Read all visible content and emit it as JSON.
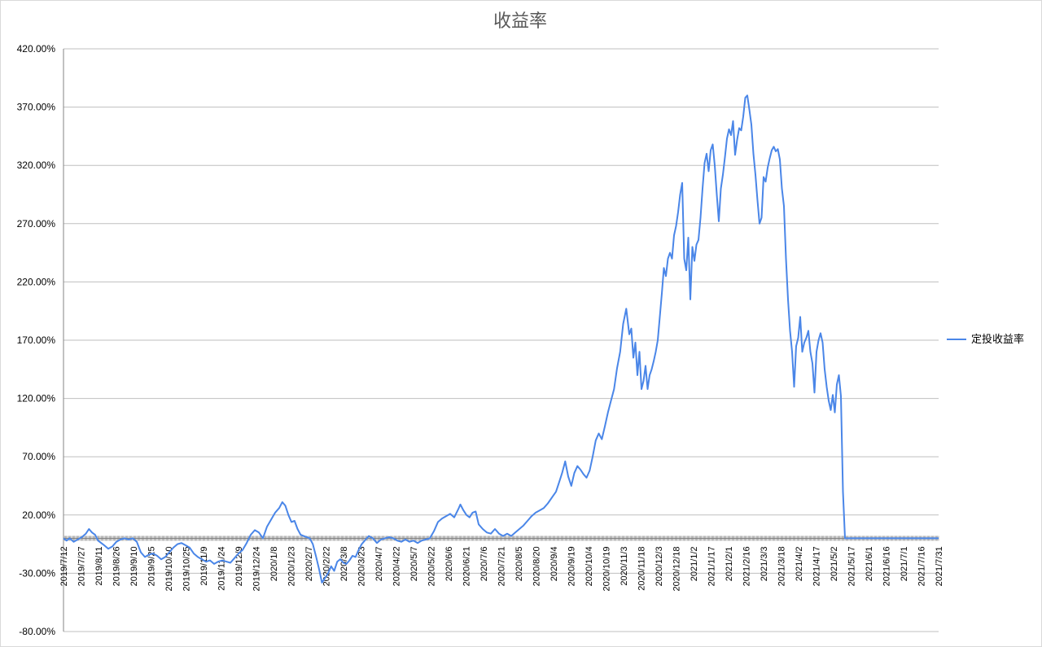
{
  "chart_data": {
    "type": "line",
    "title": "收益率",
    "xlabel": "",
    "ylabel": "",
    "ylim": [
      -80,
      420
    ],
    "y_ticks": [
      "-80.00%",
      "-30.00%",
      "20.00%",
      "70.00%",
      "120.00%",
      "170.00%",
      "220.00%",
      "270.00%",
      "320.00%",
      "370.00%",
      "420.00%"
    ],
    "y_tick_values": [
      -80,
      -30,
      20,
      70,
      120,
      170,
      220,
      270,
      320,
      370,
      420
    ],
    "x_tick_labels": [
      "2019/7/12",
      "2019/7/27",
      "2019/8/11",
      "2019/8/26",
      "2019/9/10",
      "2019/9/25",
      "2019/10/10",
      "2019/10/25",
      "2019/11/9",
      "2019/11/24",
      "2019/12/9",
      "2019/12/24",
      "2020/1/8",
      "2020/1/23",
      "2020/2/7",
      "2020/2/22",
      "2020/3/8",
      "2020/3/23",
      "2020/4/7",
      "2020/4/22",
      "2020/5/7",
      "2020/5/22",
      "2020/6/6",
      "2020/6/21",
      "2020/7/6",
      "2020/7/21",
      "2020/8/5",
      "2020/8/20",
      "2020/9/4",
      "2020/9/19",
      "2020/10/4",
      "2020/10/19",
      "2020/11/3",
      "2020/11/18",
      "2020/12/3",
      "2020/12/18",
      "2021/1/2",
      "2021/1/17",
      "2021/2/1",
      "2021/2/16",
      "2021/3/3",
      "2021/3/18",
      "2021/4/2",
      "2021/4/17",
      "2021/5/2",
      "2021/5/17",
      "2021/6/1",
      "2021/6/16",
      "2021/7/1",
      "2021/7/16",
      "2021/7/31"
    ],
    "grid": true,
    "legend_position": "right",
    "series": [
      {
        "name": "定投收益率",
        "color": "#4a86e8",
        "points": [
          [
            0,
            0
          ],
          [
            3,
            -2
          ],
          [
            6,
            0
          ],
          [
            10,
            -3
          ],
          [
            14,
            -1
          ],
          [
            18,
            1
          ],
          [
            22,
            4
          ],
          [
            25,
            8
          ],
          [
            28,
            5
          ],
          [
            31,
            3
          ],
          [
            34,
            -2
          ],
          [
            37,
            -4
          ],
          [
            40,
            -6
          ],
          [
            44,
            -9
          ],
          [
            48,
            -7
          ],
          [
            52,
            -3
          ],
          [
            56,
            -1
          ],
          [
            60,
            0
          ],
          [
            64,
            -1
          ],
          [
            68,
            0
          ],
          [
            72,
            -3
          ],
          [
            76,
            -12
          ],
          [
            80,
            -16
          ],
          [
            84,
            -14
          ],
          [
            88,
            -13
          ],
          [
            92,
            -15
          ],
          [
            96,
            -18
          ],
          [
            100,
            -16
          ],
          [
            104,
            -12
          ],
          [
            108,
            -8
          ],
          [
            112,
            -5
          ],
          [
            116,
            -4
          ],
          [
            120,
            -6
          ],
          [
            124,
            -8
          ],
          [
            128,
            -13
          ],
          [
            132,
            -16
          ],
          [
            136,
            -18
          ],
          [
            140,
            -20
          ],
          [
            144,
            -19
          ],
          [
            148,
            -22
          ],
          [
            152,
            -20
          ],
          [
            156,
            -19
          ],
          [
            160,
            -20
          ],
          [
            164,
            -21
          ],
          [
            168,
            -17
          ],
          [
            172,
            -13
          ],
          [
            176,
            -10
          ],
          [
            180,
            -4
          ],
          [
            184,
            3
          ],
          [
            188,
            7
          ],
          [
            192,
            5
          ],
          [
            196,
            0
          ],
          [
            200,
            10
          ],
          [
            204,
            16
          ],
          [
            208,
            22
          ],
          [
            212,
            26
          ],
          [
            215,
            31
          ],
          [
            218,
            28
          ],
          [
            221,
            20
          ],
          [
            224,
            14
          ],
          [
            227,
            15
          ],
          [
            230,
            8
          ],
          [
            233,
            3
          ],
          [
            236,
            2
          ],
          [
            239,
            1
          ],
          [
            242,
            0
          ],
          [
            245,
            -5
          ],
          [
            248,
            -15
          ],
          [
            251,
            -26
          ],
          [
            254,
            -38
          ],
          [
            257,
            -34
          ],
          [
            260,
            -30
          ],
          [
            263,
            -24
          ],
          [
            266,
            -28
          ],
          [
            269,
            -20
          ],
          [
            272,
            -18
          ],
          [
            275,
            -21
          ],
          [
            278,
            -22
          ],
          [
            281,
            -19
          ],
          [
            284,
            -15
          ],
          [
            287,
            -16
          ],
          [
            290,
            -10
          ],
          [
            293,
            -5
          ],
          [
            296,
            -2
          ],
          [
            300,
            2
          ],
          [
            304,
            0
          ],
          [
            308,
            -4
          ],
          [
            312,
            -1
          ],
          [
            316,
            0
          ],
          [
            320,
            1
          ],
          [
            324,
            0
          ],
          [
            328,
            -2
          ],
          [
            332,
            -3
          ],
          [
            336,
            -1
          ],
          [
            340,
            -3
          ],
          [
            344,
            -2
          ],
          [
            348,
            -4
          ],
          [
            352,
            -2
          ],
          [
            356,
            -1
          ],
          [
            360,
            0
          ],
          [
            364,
            6
          ],
          [
            368,
            14
          ],
          [
            372,
            17
          ],
          [
            376,
            19
          ],
          [
            380,
            21
          ],
          [
            384,
            18
          ],
          [
            388,
            25
          ],
          [
            390,
            29
          ],
          [
            393,
            24
          ],
          [
            396,
            20
          ],
          [
            399,
            18
          ],
          [
            402,
            22
          ],
          [
            405,
            23
          ],
          [
            408,
            12
          ],
          [
            412,
            8
          ],
          [
            416,
            5
          ],
          [
            420,
            4
          ],
          [
            424,
            8
          ],
          [
            428,
            4
          ],
          [
            432,
            2
          ],
          [
            436,
            4
          ],
          [
            440,
            2
          ],
          [
            444,
            5
          ],
          [
            448,
            8
          ],
          [
            452,
            11
          ],
          [
            456,
            15
          ],
          [
            460,
            19
          ],
          [
            464,
            22
          ],
          [
            468,
            24
          ],
          [
            472,
            26
          ],
          [
            476,
            30
          ],
          [
            480,
            35
          ],
          [
            484,
            40
          ],
          [
            487,
            48
          ],
          [
            490,
            56
          ],
          [
            493,
            66
          ],
          [
            496,
            53
          ],
          [
            499,
            45
          ],
          [
            502,
            56
          ],
          [
            505,
            62
          ],
          [
            508,
            59
          ],
          [
            511,
            55
          ],
          [
            514,
            52
          ],
          [
            517,
            58
          ],
          [
            520,
            70
          ],
          [
            523,
            84
          ],
          [
            526,
            90
          ],
          [
            529,
            85
          ],
          [
            532,
            96
          ],
          [
            535,
            108
          ],
          [
            538,
            118
          ],
          [
            541,
            128
          ],
          [
            544,
            146
          ],
          [
            547,
            160
          ],
          [
            550,
            184
          ],
          [
            553,
            197
          ],
          [
            556,
            175
          ],
          [
            558,
            180
          ],
          [
            560,
            155
          ],
          [
            562,
            168
          ],
          [
            564,
            140
          ],
          [
            566,
            160
          ],
          [
            568,
            128
          ],
          [
            570,
            135
          ],
          [
            572,
            148
          ],
          [
            574,
            128
          ],
          [
            576,
            140
          ],
          [
            578,
            145
          ],
          [
            580,
            152
          ],
          [
            582,
            160
          ],
          [
            584,
            170
          ],
          [
            586,
            190
          ],
          [
            588,
            210
          ],
          [
            590,
            232
          ],
          [
            592,
            225
          ],
          [
            594,
            240
          ],
          [
            596,
            245
          ],
          [
            598,
            240
          ],
          [
            600,
            260
          ],
          [
            602,
            268
          ],
          [
            604,
            280
          ],
          [
            606,
            295
          ],
          [
            608,
            305
          ],
          [
            610,
            240
          ],
          [
            612,
            230
          ],
          [
            614,
            258
          ],
          [
            616,
            205
          ],
          [
            618,
            250
          ],
          [
            620,
            238
          ],
          [
            622,
            252
          ],
          [
            624,
            256
          ],
          [
            626,
            275
          ],
          [
            628,
            300
          ],
          [
            630,
            322
          ],
          [
            632,
            330
          ],
          [
            634,
            315
          ],
          [
            636,
            333
          ],
          [
            638,
            338
          ],
          [
            640,
            320
          ],
          [
            642,
            295
          ],
          [
            644,
            272
          ],
          [
            646,
            300
          ],
          [
            648,
            312
          ],
          [
            650,
            327
          ],
          [
            652,
            343
          ],
          [
            654,
            351
          ],
          [
            656,
            346
          ],
          [
            658,
            358
          ],
          [
            660,
            329
          ],
          [
            662,
            342
          ],
          [
            664,
            352
          ],
          [
            666,
            350
          ],
          [
            668,
            362
          ],
          [
            670,
            378
          ],
          [
            672,
            380
          ],
          [
            674,
            368
          ],
          [
            676,
            355
          ],
          [
            678,
            330
          ],
          [
            680,
            312
          ],
          [
            682,
            290
          ],
          [
            684,
            270
          ],
          [
            686,
            275
          ],
          [
            688,
            310
          ],
          [
            690,
            306
          ],
          [
            692,
            318
          ],
          [
            694,
            326
          ],
          [
            696,
            333
          ],
          [
            698,
            336
          ],
          [
            700,
            332
          ],
          [
            702,
            334
          ],
          [
            704,
            325
          ],
          [
            706,
            300
          ],
          [
            708,
            285
          ],
          [
            710,
            240
          ],
          [
            712,
            205
          ],
          [
            714,
            178
          ],
          [
            716,
            160
          ],
          [
            718,
            130
          ],
          [
            720,
            165
          ],
          [
            722,
            172
          ],
          [
            724,
            190
          ],
          [
            726,
            160
          ],
          [
            728,
            168
          ],
          [
            730,
            172
          ],
          [
            732,
            178
          ],
          [
            734,
            160
          ],
          [
            736,
            150
          ],
          [
            738,
            125
          ],
          [
            740,
            160
          ],
          [
            742,
            170
          ],
          [
            744,
            176
          ],
          [
            746,
            168
          ],
          [
            748,
            145
          ],
          [
            750,
            130
          ],
          [
            752,
            118
          ],
          [
            754,
            110
          ],
          [
            756,
            123
          ],
          [
            758,
            108
          ],
          [
            760,
            132
          ],
          [
            762,
            140
          ],
          [
            764,
            122
          ],
          [
            766,
            40
          ],
          [
            768,
            0
          ],
          [
            772,
            0
          ],
          [
            780,
            0
          ],
          [
            790,
            0
          ],
          [
            800,
            0
          ],
          [
            810,
            0
          ],
          [
            820,
            0
          ],
          [
            830,
            0
          ],
          [
            840,
            0
          ],
          [
            850,
            0
          ],
          [
            860,
            0
          ]
        ]
      }
    ]
  }
}
